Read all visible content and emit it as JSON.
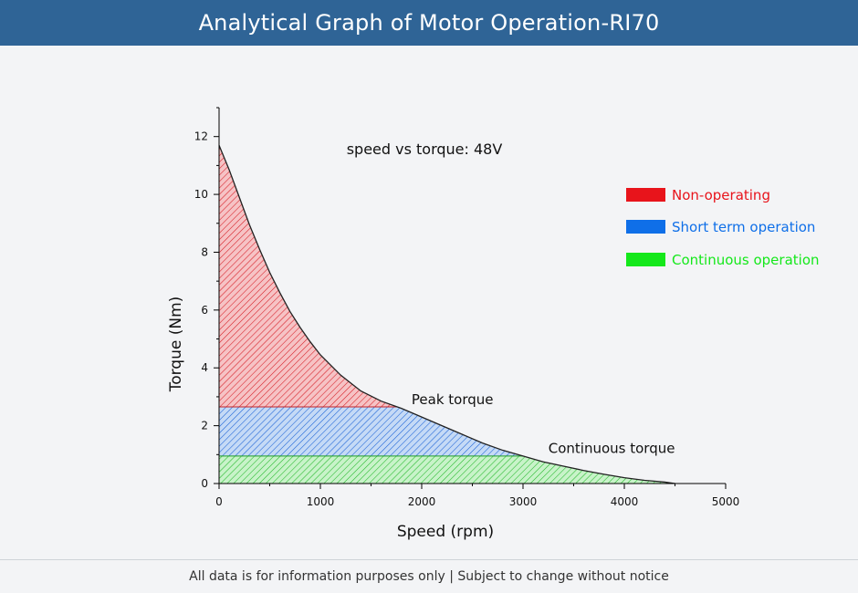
{
  "header": {
    "title": "Analytical Graph of Motor Operation-RI70"
  },
  "footer": {
    "notice": "All data is for information purposes only | Subject to change without notice"
  },
  "colors": {
    "header_bg": "#2f6496",
    "non_operating": "#e8141b",
    "short_term": "#0f6fe8",
    "continuous": "#15e81b"
  },
  "chart_data": {
    "type": "area",
    "title": "speed vs torque: 48V",
    "xlabel": "Speed (rpm)",
    "ylabel": "Torque (Nm)",
    "xlim": [
      0,
      5000
    ],
    "ylim": [
      0,
      13
    ],
    "xticks": [
      0,
      1000,
      2000,
      3000,
      4000,
      5000
    ],
    "yticks": [
      0,
      2,
      4,
      6,
      8,
      10,
      12
    ],
    "grid": false,
    "legend_position": "top-right",
    "legend": [
      {
        "label": "Non-operating",
        "color": "#e8141b"
      },
      {
        "label": "Short term operation",
        "color": "#0f6fe8"
      },
      {
        "label": "Continuous operation",
        "color": "#15e81b"
      }
    ],
    "peak_torque": 2.65,
    "continuous_torque": 0.95,
    "curve": {
      "x": [
        0,
        100,
        200,
        300,
        400,
        500,
        600,
        700,
        800,
        900,
        1000,
        1200,
        1400,
        1600,
        1800,
        2000,
        2200,
        2400,
        2600,
        2800,
        3000,
        3200,
        3400,
        3600,
        3800,
        4000,
        4200,
        4400,
        4500
      ],
      "y": [
        11.7,
        10.85,
        9.9,
        8.95,
        8.1,
        7.3,
        6.6,
        5.95,
        5.4,
        4.9,
        4.45,
        3.75,
        3.2,
        2.85,
        2.6,
        2.3,
        2.0,
        1.7,
        1.4,
        1.15,
        0.95,
        0.75,
        0.6,
        0.45,
        0.32,
        0.2,
        0.11,
        0.05,
        0.0
      ]
    },
    "annotations": [
      {
        "text": "Peak torque",
        "x": 1900,
        "y": 2.75
      },
      {
        "text": "Continuous torque",
        "x": 3250,
        "y": 1.05
      }
    ]
  }
}
